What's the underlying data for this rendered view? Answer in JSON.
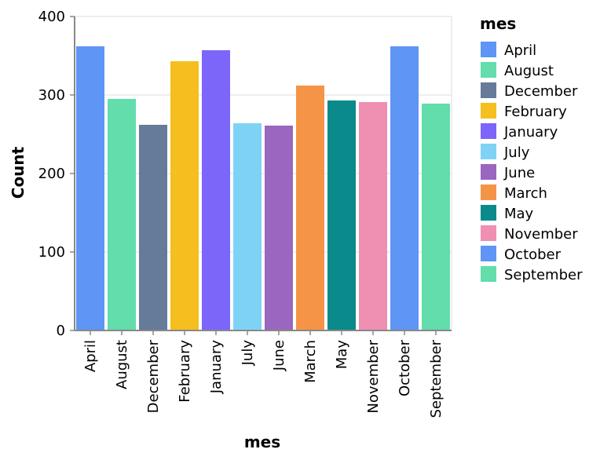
{
  "chart_data": {
    "type": "bar",
    "categories": [
      "April",
      "August",
      "December",
      "February",
      "January",
      "July",
      "June",
      "March",
      "May",
      "November",
      "October",
      "September"
    ],
    "values": [
      362,
      295,
      262,
      343,
      357,
      264,
      261,
      312,
      293,
      291,
      362,
      289
    ],
    "colors": [
      "#5f95f5",
      "#62ddab",
      "#667a9a",
      "#f5bf1f",
      "#7b66f9",
      "#7ed3f5",
      "#9a66bf",
      "#f59447",
      "#0a8a8a",
      "#ef8fb1",
      "#5f95f5",
      "#62ddab"
    ],
    "xlabel": "mes",
    "ylabel": "Count",
    "ylim": [
      0,
      400
    ],
    "yticks": [
      0,
      100,
      200,
      300,
      400
    ],
    "grid": true,
    "legend": {
      "title": "mes",
      "placement": "right",
      "entries": [
        "April",
        "August",
        "December",
        "February",
        "January",
        "July",
        "June",
        "March",
        "May",
        "November",
        "October",
        "September"
      ]
    }
  }
}
